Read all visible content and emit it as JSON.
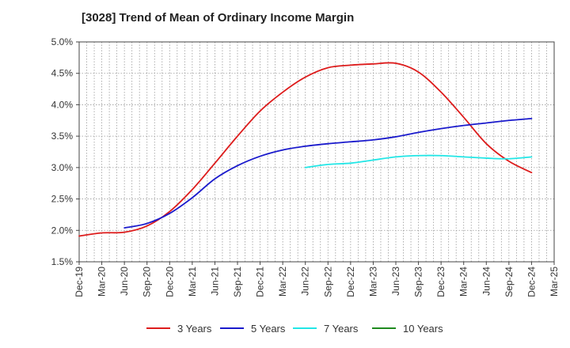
{
  "chart_data": {
    "type": "line",
    "title": "[3028]  Trend of Mean of Ordinary Income Margin",
    "xlabel": "",
    "ylabel": "",
    "x_ticks": [
      "Dec-19",
      "Mar-20",
      "Jun-20",
      "Sep-20",
      "Dec-20",
      "Mar-21",
      "Jun-21",
      "Sep-21",
      "Dec-21",
      "Mar-22",
      "Jun-22",
      "Sep-22",
      "Dec-22",
      "Mar-23",
      "Jun-23",
      "Sep-23",
      "Dec-23",
      "Mar-24",
      "Jun-24",
      "Sep-24",
      "Dec-24",
      "Mar-25"
    ],
    "y_ticks": [
      "1.5%",
      "2.0%",
      "2.5%",
      "3.0%",
      "3.5%",
      "4.0%",
      "4.5%",
      "5.0%"
    ],
    "ylim": [
      1.5,
      5.0
    ],
    "grid": true,
    "legend_position": "bottom",
    "series": [
      {
        "name": "3 Years",
        "color": "#dd1c1c",
        "points": [
          [
            "Dec-19",
            1.91
          ],
          [
            "Mar-20",
            1.96
          ],
          [
            "Jun-20",
            1.97
          ],
          [
            "Sep-20",
            2.07
          ],
          [
            "Dec-20",
            2.3
          ],
          [
            "Mar-21",
            2.65
          ],
          [
            "Jun-21",
            3.07
          ],
          [
            "Sep-21",
            3.5
          ],
          [
            "Dec-21",
            3.9
          ],
          [
            "Mar-22",
            4.2
          ],
          [
            "Jun-22",
            4.44
          ],
          [
            "Sep-22",
            4.59
          ],
          [
            "Dec-22",
            4.63
          ],
          [
            "Mar-23",
            4.65
          ],
          [
            "Jun-23",
            4.66
          ],
          [
            "Sep-23",
            4.52
          ],
          [
            "Dec-23",
            4.2
          ],
          [
            "Mar-24",
            3.8
          ],
          [
            "Jun-24",
            3.38
          ],
          [
            "Sep-24",
            3.1
          ],
          [
            "Dec-24",
            2.92
          ]
        ]
      },
      {
        "name": "5 Years",
        "color": "#1a1acc",
        "points": [
          [
            "Jun-20",
            2.04
          ],
          [
            "Sep-20",
            2.11
          ],
          [
            "Dec-20",
            2.27
          ],
          [
            "Mar-21",
            2.52
          ],
          [
            "Jun-21",
            2.82
          ],
          [
            "Sep-21",
            3.03
          ],
          [
            "Dec-21",
            3.18
          ],
          [
            "Mar-22",
            3.28
          ],
          [
            "Jun-22",
            3.34
          ],
          [
            "Sep-22",
            3.38
          ],
          [
            "Dec-22",
            3.41
          ],
          [
            "Mar-23",
            3.44
          ],
          [
            "Jun-23",
            3.49
          ],
          [
            "Sep-23",
            3.56
          ],
          [
            "Dec-23",
            3.62
          ],
          [
            "Mar-24",
            3.67
          ],
          [
            "Jun-24",
            3.71
          ],
          [
            "Sep-24",
            3.75
          ],
          [
            "Dec-24",
            3.78
          ]
        ]
      },
      {
        "name": "7 Years",
        "color": "#22e6e6",
        "points": [
          [
            "Jun-22",
            3.0
          ],
          [
            "Sep-22",
            3.05
          ],
          [
            "Dec-22",
            3.07
          ],
          [
            "Mar-23",
            3.12
          ],
          [
            "Jun-23",
            3.17
          ],
          [
            "Sep-23",
            3.19
          ],
          [
            "Dec-23",
            3.19
          ],
          [
            "Mar-24",
            3.17
          ],
          [
            "Jun-24",
            3.15
          ],
          [
            "Sep-24",
            3.14
          ],
          [
            "Dec-24",
            3.17
          ]
        ]
      },
      {
        "name": "10 Years",
        "color": "#1f8a1f",
        "points": []
      }
    ]
  }
}
